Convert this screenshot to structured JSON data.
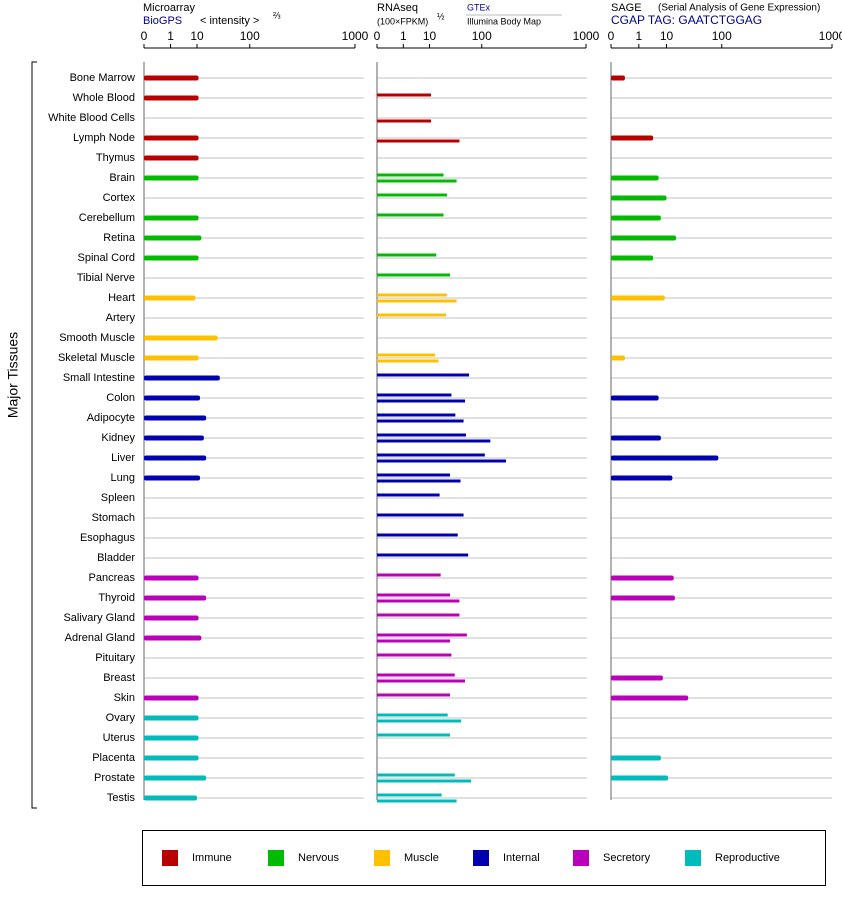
{
  "y_axis_label": "Major Tissues",
  "groups": [
    {
      "name": "Immune",
      "color": "#b80000",
      "tissues": [
        "Bone Marrow",
        "Whole Blood",
        "White Blood Cells",
        "Lymph Node",
        "Thymus"
      ]
    },
    {
      "name": "Nervous",
      "color": "#00bb00",
      "tissues": [
        "Brain",
        "Cortex",
        "Cerebellum",
        "Retina",
        "Spinal Cord",
        "Tibial Nerve"
      ]
    },
    {
      "name": "Muscle",
      "color": "#ffc000",
      "tissues": [
        "Heart",
        "Artery",
        "Smooth Muscle",
        "Skeletal Muscle"
      ]
    },
    {
      "name": "Internal",
      "color": "#0000b0",
      "tissues": [
        "Small Intestine",
        "Colon",
        "Adipocyte",
        "Kidney",
        "Liver",
        "Lung",
        "Spleen",
        "Stomach",
        "Esophagus",
        "Bladder"
      ]
    },
    {
      "name": "Secretory",
      "color": "#bb00bb",
      "tissues": [
        "Pancreas",
        "Thyroid",
        "Salivary Gland",
        "Adrenal Gland",
        "Pituitary",
        "Breast",
        "Skin"
      ]
    },
    {
      "name": "Reproductive",
      "color": "#00bbbb",
      "tissues": [
        "Ovary",
        "Uterus",
        "Placenta",
        "Prostate",
        "Testis"
      ]
    }
  ],
  "chart_data": [
    {
      "type": "bar",
      "title": "Microarray",
      "subtitle": "BioGPS",
      "axis_label": "< intensity >",
      "axis_exponent": "⅔",
      "xlim": [
        0,
        1000
      ],
      "xticks": [
        0,
        1,
        10,
        100,
        1000
      ],
      "series": [
        {
          "values": [
            11,
            11,
            null,
            11,
            11,
            11,
            null,
            11,
            13,
            11,
            null,
            9,
            null,
            30,
            11,
            33,
            12,
            17,
            15,
            17,
            12,
            null,
            null,
            null,
            null,
            11,
            17,
            11,
            13,
            null,
            null,
            11,
            11,
            11,
            11,
            17,
            10
          ]
        }
      ]
    },
    {
      "type": "bar",
      "title": "RNAseq",
      "axis_label": "(100×FPKM)",
      "axis_exponent": "½",
      "xlim": [
        0,
        1000
      ],
      "xticks": [
        0,
        1,
        10,
        100,
        1000
      ],
      "series": [
        {
          "name": "GTEx",
          "values": [
            null,
            11,
            null,
            null,
            null,
            22,
            26,
            22,
            null,
            15,
            30,
            26,
            25,
            null,
            14,
            65,
            32,
            38,
            58,
            110,
            30,
            18,
            53,
            42,
            63,
            19,
            30,
            45,
            60,
            32,
            37,
            30,
            27,
            30,
            null,
            37,
            20
          ]
        },
        {
          "name": "Illumina Body Map",
          "values": [
            null,
            null,
            11,
            45,
            null,
            40,
            null,
            null,
            null,
            null,
            null,
            40,
            null,
            null,
            17,
            null,
            56,
            53,
            130,
            200,
            47,
            null,
            null,
            null,
            null,
            null,
            45,
            null,
            30,
            null,
            56,
            null,
            48,
            null,
            null,
            70,
            40
          ]
        }
      ]
    },
    {
      "type": "bar",
      "title": "SAGE",
      "subtitle": "(Serial Analysis of Gene Expression)",
      "tag": "CGAP TAG: GAATCTGGAG",
      "xlim": [
        0,
        1000
      ],
      "xticks": [
        0,
        1,
        10,
        100,
        1000
      ],
      "series": [
        {
          "values": [
            0.1,
            null,
            null,
            4,
            null,
            6,
            10,
            7,
            17,
            4,
            null,
            9,
            null,
            null,
            0.1,
            null,
            6,
            null,
            7,
            90,
            14,
            null,
            null,
            null,
            null,
            15,
            16,
            null,
            null,
            null,
            8,
            30,
            null,
            null,
            7,
            11,
            null
          ]
        }
      ]
    }
  ]
}
